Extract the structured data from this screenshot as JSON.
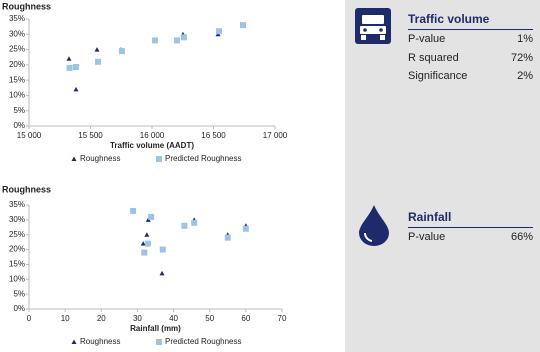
{
  "chart_data": [
    {
      "type": "scatter",
      "title": "Roughness",
      "x_label": "Traffic volume (AADT)",
      "xlim": [
        15000,
        17000
      ],
      "xticks": [
        {
          "value": 15000,
          "label": "15 000"
        },
        {
          "value": 15500,
          "label": "15 500"
        },
        {
          "value": 16000,
          "label": "16 000"
        },
        {
          "value": 16500,
          "label": "16 500"
        },
        {
          "value": 17000,
          "label": "17 000"
        }
      ],
      "ylim": [
        0,
        35
      ],
      "yticks": [
        {
          "value": 0,
          "label": "0%"
        },
        {
          "value": 5,
          "label": "5%"
        },
        {
          "value": 10,
          "label": "10%"
        },
        {
          "value": 15,
          "label": "15%"
        },
        {
          "value": 20,
          "label": "20%"
        },
        {
          "value": 25,
          "label": "25%"
        },
        {
          "value": 30,
          "label": "30%"
        },
        {
          "value": 35,
          "label": "35%"
        }
      ],
      "series": [
        {
          "name": "Roughness",
          "color": "#1f2a6b",
          "marker": "triangle",
          "x": [
            15325,
            15382,
            15553,
            15748,
            16024,
            16252,
            16537
          ],
          "values": [
            22,
            12,
            25,
            25,
            28,
            30,
            30
          ]
        },
        {
          "name": "Predicted Roughness",
          "color": "#9dc3e6",
          "marker": "square",
          "x": [
            15330,
            15382,
            15561,
            15756,
            16024,
            16203,
            16260,
            16545,
            16740
          ],
          "values": [
            19,
            19.3,
            21,
            24.5,
            28,
            28,
            29,
            31,
            33
          ]
        }
      ]
    },
    {
      "type": "scatter",
      "title": "Roughness",
      "x_label": "Rainfall (mm)",
      "xlim": [
        0,
        70
      ],
      "xticks": [
        0,
        10,
        20,
        30,
        40,
        50,
        60,
        70
      ],
      "ylim": [
        0,
        35
      ],
      "yticks": [
        {
          "value": 0,
          "label": "0%"
        },
        {
          "value": 5,
          "label": "5%"
        },
        {
          "value": 10,
          "label": "10%"
        },
        {
          "value": 15,
          "label": "15%"
        },
        {
          "value": 20,
          "label": "20%"
        },
        {
          "value": 25,
          "label": "25%"
        },
        {
          "value": 30,
          "label": "30%"
        },
        {
          "value": 35,
          "label": "35%"
        }
      ],
      "series": [
        {
          "name": "Roughness",
          "color": "#1f2a6b",
          "marker": "triangle",
          "x": [
            33,
            32.6,
            31.6,
            36.8,
            45.7,
            55,
            60
          ],
          "values": [
            30,
            25,
            22,
            12,
            30,
            25,
            28
          ]
        },
        {
          "name": "Predicted Roughness",
          "color": "#9dc3e6",
          "marker": "square",
          "x": [
            28.8,
            33.8,
            31.9,
            32.9,
            37,
            43,
            45.7,
            55,
            60
          ],
          "values": [
            33,
            31,
            19,
            22,
            20,
            28,
            29,
            24,
            27
          ]
        }
      ]
    }
  ],
  "panel": {
    "sections": [
      {
        "title": "Traffic volume",
        "rows": [
          [
            "P-value",
            "1%"
          ],
          [
            "R squared",
            "72%"
          ],
          [
            "Significance",
            "2%"
          ]
        ]
      },
      {
        "title": "Rainfall",
        "rows": [
          [
            "P-value",
            "66%"
          ]
        ]
      }
    ]
  }
}
